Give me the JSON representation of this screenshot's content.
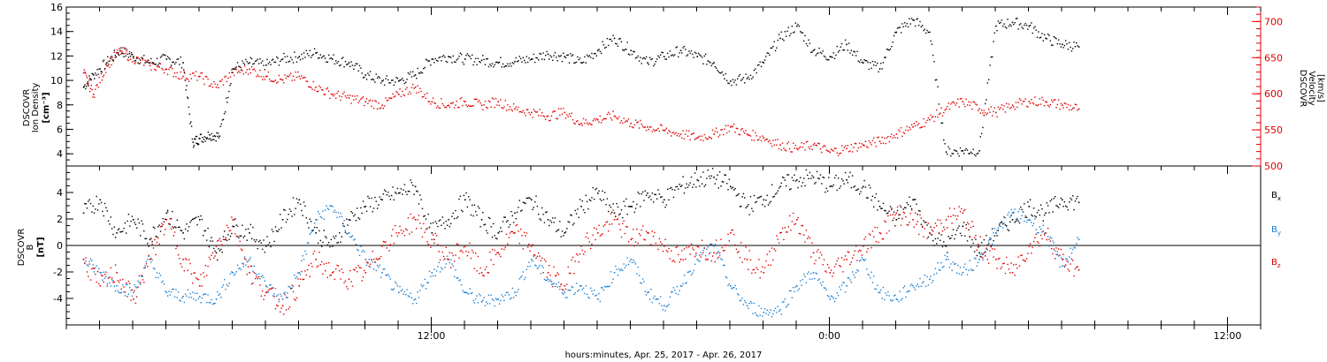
{
  "chart_data": [
    {
      "type": "scatter",
      "panel": "top",
      "ylabel": [
        "DSCOVR",
        "Ion Density",
        "[cm⁻³]"
      ],
      "ylabel_right": [
        "DSCOVR",
        "Velocity",
        "[km/s]"
      ],
      "ylim": [
        3,
        16
      ],
      "ylim_right": [
        500,
        720
      ],
      "yticks": [
        4,
        6,
        8,
        10,
        12,
        14,
        16
      ],
      "yticks_right": [
        500,
        550,
        600,
        650,
        700
      ],
      "grid": false,
      "series": [
        {
          "axis": "left",
          "color": "#000000",
          "x_hours": [
            1.5,
            1.8,
            2.2,
            2.6,
            3,
            3.5,
            4,
            4.5,
            4.8,
            5,
            5.3,
            5.6,
            6,
            6.5,
            7,
            7.5,
            8,
            8.5,
            9,
            9.5,
            10,
            10.5,
            11,
            11.5,
            12,
            12.5,
            13,
            13.5,
            14,
            14.5,
            15,
            15.5,
            16,
            16.5,
            17,
            17.5,
            18,
            18.5,
            19,
            19.5,
            20,
            20.5,
            21,
            21.5,
            22,
            22.5,
            23,
            23.5,
            24,
            24.5,
            25,
            25.5,
            26,
            26.5,
            27,
            27.5,
            28,
            28.5,
            29,
            29.5,
            30,
            30.5,
            31,
            31.5
          ],
          "values": [
            9.5,
            10.5,
            11.5,
            12.5,
            12,
            11.5,
            11.8,
            11.5,
            5,
            5.3,
            5.6,
            5.5,
            11,
            11.5,
            11.3,
            11.8,
            12,
            12.3,
            11.8,
            11.5,
            10.5,
            10,
            10,
            10.5,
            11.8,
            12,
            11.8,
            11.7,
            11.5,
            11.6,
            11.8,
            12.2,
            12,
            11.5,
            12.5,
            13.5,
            12.5,
            11.5,
            12,
            12.5,
            12,
            11.5,
            10,
            10.2,
            11.5,
            13.5,
            14.5,
            12.5,
            12,
            13,
            11.5,
            11,
            14,
            15,
            14,
            4.2,
            4.3,
            4.3,
            14.5,
            14.8,
            14.5,
            13.5,
            13,
            12.8
          ]
        },
        {
          "axis": "right",
          "color": "#e00000",
          "x_hours": [
            1.5,
            1.8,
            2.2,
            2.6,
            3,
            3.5,
            4,
            4.5,
            5,
            5.5,
            6,
            6.5,
            7,
            7.5,
            8,
            8.5,
            9,
            9.5,
            10,
            10.5,
            11,
            11.5,
            12,
            12.5,
            13,
            13.5,
            14,
            14.5,
            15,
            15.5,
            16,
            16.5,
            17,
            17.5,
            18,
            18.5,
            19,
            19.5,
            20,
            20.5,
            21,
            21.5,
            22,
            22.5,
            23,
            23.5,
            24,
            24.5,
            25,
            25.5,
            26,
            26.5,
            27,
            27.5,
            28,
            28.5,
            29,
            29.5,
            30,
            30.5,
            31,
            31.5
          ],
          "values": [
            630,
            600,
            640,
            660,
            650,
            640,
            635,
            625,
            625,
            610,
            630,
            635,
            625,
            620,
            625,
            610,
            600,
            595,
            590,
            585,
            600,
            610,
            590,
            585,
            590,
            585,
            590,
            580,
            575,
            570,
            575,
            560,
            565,
            570,
            560,
            555,
            550,
            545,
            540,
            545,
            555,
            545,
            540,
            530,
            525,
            530,
            520,
            525,
            530,
            535,
            545,
            555,
            565,
            580,
            590,
            580,
            575,
            585,
            590,
            590,
            585,
            580
          ]
        }
      ]
    },
    {
      "type": "scatter",
      "panel": "bottom",
      "ylabel": [
        "DSCOVR",
        "B",
        "[nT]"
      ],
      "ylim": [
        -6,
        6
      ],
      "yticks": [
        -4,
        -2,
        0,
        2,
        4
      ],
      "zero_line": true,
      "grid": false,
      "legend": [
        "Bx",
        "By",
        "Bz"
      ],
      "legend_colors": [
        "#000000",
        "#1a7fd4",
        "#e00000"
      ],
      "legend_placement": "right",
      "series": [
        {
          "name": "Bx",
          "color": "#000000",
          "x_hours": [
            1.5,
            2,
            2.5,
            3,
            3.5,
            4,
            4.5,
            5,
            5.5,
            6,
            6.5,
            7,
            7.5,
            8,
            8.5,
            9,
            9.5,
            10,
            10.5,
            11,
            11.5,
            12,
            12.5,
            13,
            13.5,
            14,
            14.5,
            15,
            15.5,
            16,
            16.5,
            17,
            17.5,
            18,
            18.5,
            19,
            19.5,
            20,
            20.5,
            21,
            21.5,
            22,
            22.5,
            23,
            23.5,
            24,
            24.5,
            25,
            25.5,
            26,
            26.5,
            27,
            27.5,
            28,
            28.5,
            29,
            29.5,
            30,
            30.5,
            31,
            31.5
          ],
          "values": [
            2.5,
            3.5,
            1,
            2,
            0.5,
            2.5,
            1,
            2,
            -0.5,
            1.5,
            1,
            0,
            2,
            3.5,
            1,
            0,
            2,
            3,
            3.5,
            4,
            4.5,
            1,
            2,
            3.5,
            2,
            1,
            2.5,
            3.5,
            2,
            1,
            3,
            4,
            2.5,
            3,
            4,
            3.5,
            4.5,
            5,
            5.2,
            4.5,
            3,
            3.5,
            4.5,
            5,
            5.2,
            4.5,
            5,
            4.5,
            3,
            2,
            3.5,
            1,
            0,
            1.5,
            -0.5,
            1,
            2,
            3,
            2.5,
            3.5,
            3.3
          ]
        },
        {
          "name": "By",
          "color": "#1a7fd4",
          "x_hours": [
            1.5,
            2,
            2.5,
            3,
            3.5,
            4,
            4.5,
            5,
            5.5,
            6,
            6.5,
            7,
            7.5,
            8,
            8.5,
            9,
            9.5,
            10,
            10.5,
            11,
            11.5,
            12,
            12.5,
            13,
            13.5,
            14,
            14.5,
            15,
            15.5,
            16,
            16.5,
            17,
            17.5,
            18,
            18.5,
            19,
            19.5,
            20,
            20.5,
            21,
            21.5,
            22,
            22.5,
            23,
            23.5,
            24,
            24.5,
            25,
            25.5,
            26,
            26.5,
            27,
            27.5,
            28,
            28.5,
            29,
            29.5,
            30,
            30.5,
            31,
            31.5
          ],
          "values": [
            -1,
            -2,
            -3,
            -3.5,
            -1,
            -3.5,
            -3.8,
            -3.8,
            -4,
            -2,
            -1,
            -3,
            -4,
            -2,
            2,
            3,
            1,
            -1,
            -2,
            -3.5,
            -4,
            -2,
            -1,
            -3.5,
            -4.2,
            -4,
            -3.5,
            -1,
            -2.5,
            -3.5,
            -3,
            -4,
            -2,
            -1,
            -3.5,
            -4.5,
            -3,
            -1,
            0,
            -3,
            -4.5,
            -5,
            -4.8,
            -3,
            -2,
            -4,
            -3,
            -1,
            -3.5,
            -4,
            -3,
            -2.5,
            -1,
            -2,
            -1,
            1,
            2.5,
            2,
            1,
            -1.5,
            0.5
          ]
        },
        {
          "name": "Bz",
          "color": "#e00000",
          "x_hours": [
            1.5,
            2,
            2.5,
            3,
            3.5,
            4,
            4.5,
            5,
            5.5,
            6,
            6.5,
            7,
            7.5,
            8,
            8.5,
            9,
            9.5,
            10,
            10.5,
            11,
            11.5,
            12,
            12.5,
            13,
            13.5,
            14,
            14.5,
            15,
            15.5,
            16,
            16.5,
            17,
            17.5,
            18,
            18.5,
            19,
            19.5,
            20,
            20.5,
            21,
            21.5,
            22,
            22.5,
            23,
            23.5,
            24,
            24.5,
            25,
            25.5,
            26,
            26.5,
            27,
            27.5,
            28,
            28.5,
            29,
            29.5,
            30,
            30.5,
            31,
            31.5
          ],
          "values": [
            -1,
            -3,
            -2,
            -4,
            -1,
            2,
            -1,
            -3,
            0,
            2,
            -2,
            -3.5,
            -4.5,
            -3,
            -1,
            -2,
            -2.5,
            -2,
            0,
            1,
            2,
            0.5,
            -1,
            0,
            -2,
            -0.5,
            1,
            0,
            -2,
            -3,
            0,
            1,
            2,
            0.5,
            1,
            0,
            -1,
            0,
            -0.5,
            1,
            -1,
            -2,
            1,
            2,
            -0.5,
            -2,
            -1,
            0,
            1,
            2.5,
            2,
            1,
            2,
            2.5,
            0,
            -1,
            -2,
            0,
            1,
            -1,
            -1.8
          ]
        }
      ]
    }
  ],
  "x_axis": {
    "label": "hours:minutes, Apr. 25, 2017 - Apr. 26, 2017",
    "tick_labels": [
      "12:00",
      "0:00",
      "12:00"
    ],
    "tick_hours": [
      12,
      24,
      36
    ],
    "range_hours": [
      1,
      37
    ]
  },
  "legend_labels": {
    "bx": "B",
    "bx_sub": "x",
    "by": "B",
    "by_sub": "y",
    "bz": "B",
    "bz_sub": "z"
  },
  "colors": {
    "density": "#000000",
    "velocity": "#e00000",
    "bx": "#000000",
    "by": "#1a7fd4",
    "bz": "#e00000"
  }
}
